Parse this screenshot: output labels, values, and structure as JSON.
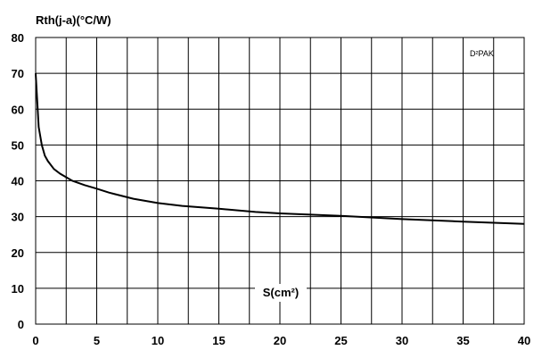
{
  "chart_data": {
    "type": "line",
    "ylabel": "Rth(j-a)(°C/W)",
    "xlabel": "S(cm²)",
    "annotation": "D²PAK",
    "xlim": [
      0,
      40
    ],
    "ylim": [
      0,
      80
    ],
    "xticks": [
      0,
      5,
      10,
      15,
      20,
      25,
      30,
      35,
      40
    ],
    "yticks": [
      0,
      10,
      20,
      30,
      40,
      50,
      60,
      70,
      80
    ],
    "grid": true,
    "series": [
      {
        "x": [
          0,
          0.25,
          0.5,
          0.75,
          1,
          1.5,
          2,
          3,
          4,
          5,
          6,
          8,
          10,
          12,
          15,
          18,
          20,
          25,
          30,
          35,
          40
        ],
        "y": [
          70,
          55,
          50,
          47,
          45.5,
          43.3,
          42,
          40,
          38.8,
          37.8,
          36.7,
          35,
          33.8,
          33,
          32.2,
          31.3,
          30.9,
          30.2,
          29.3,
          28.6,
          28
        ]
      }
    ]
  }
}
